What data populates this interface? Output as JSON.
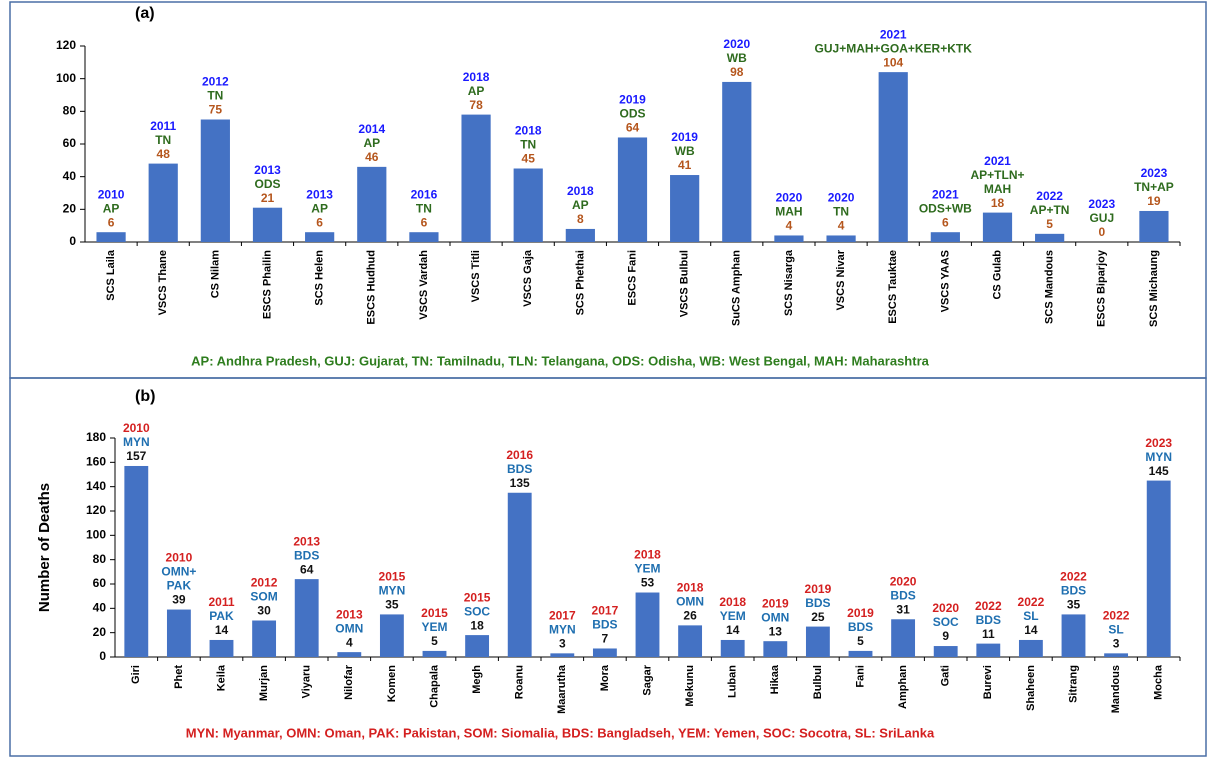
{
  "chart_data": [
    {
      "type": "bar",
      "panel_label": "(a)",
      "categories": [
        "SCS Laila",
        "VSCS Thane",
        "CS Nilam",
        "ESCS Phailin",
        "SCS Helen",
        "ESCS Hudhud",
        "VSCS Vardah",
        "VSCS Titli",
        "VSCS Gaja",
        "SCS Phethai",
        "ESCS Fani",
        "VSCS Bulbul",
        "SuCS Amphan",
        "SCS Nisarga",
        "VSCS Nivar",
        "ESCS Tauktae",
        "VSCS YAAS",
        "CS Gulab",
        "SCS Mandous",
        "ESCS Biparjoy",
        "SCS Michaung"
      ],
      "values": [
        6,
        48,
        75,
        21,
        6,
        46,
        6,
        78,
        45,
        8,
        64,
        41,
        98,
        4,
        4,
        104,
        6,
        18,
        5,
        0,
        19
      ],
      "years": [
        "2010",
        "2011",
        "2012",
        "2013",
        "2013",
        "2014",
        "2016",
        "2018",
        "2018",
        "2018",
        "2019",
        "2019",
        "2020",
        "2020",
        "2020",
        "2021",
        "2021",
        "2021",
        "2022",
        "2023",
        "2023"
      ],
      "regions": [
        [
          "AP"
        ],
        [
          "TN"
        ],
        [
          "TN"
        ],
        [
          "ODS"
        ],
        [
          "AP"
        ],
        [
          "AP"
        ],
        [
          "TN"
        ],
        [
          "AP"
        ],
        [
          "TN"
        ],
        [
          "AP"
        ],
        [
          "ODS"
        ],
        [
          "WB"
        ],
        [
          "WB"
        ],
        [
          "MAH"
        ],
        [
          "TN"
        ],
        [
          "GUJ+MAH+GOA+KER+KTK"
        ],
        [
          "ODS+WB"
        ],
        [
          "AP+TLN+",
          "MAH"
        ],
        [
          "AP+TN"
        ],
        [
          "GUJ"
        ],
        [
          "TN+AP"
        ]
      ],
      "color": "#4472c4",
      "year_color": "#1a1aff",
      "region_color": "#2e6b1e",
      "value_color": "#b5561d",
      "ylim": [
        0,
        120
      ],
      "yticks": [
        0,
        20,
        40,
        60,
        80,
        100,
        120
      ],
      "note": "AP: Andhra Pradesh, GUJ: Gujarat, TN: Tamilnadu, TLN: Telangana, ODS: Odisha, WB: West Bengal, MAH: Maharashtra",
      "note_color": "#2e7d1e"
    },
    {
      "type": "bar",
      "panel_label": "(b)",
      "y_label": "Number of Deaths",
      "categories": [
        "Giri",
        "Phet",
        "Keila",
        "Murjan",
        "Viyaru",
        "Nilofar",
        "Komen",
        "Chapala",
        "Megh",
        "Roanu",
        "Maarutha",
        "Mora",
        "Sagar",
        "Mekunu",
        "Luban",
        "Hikaa",
        "Bulbul",
        "Fani",
        "Amphan",
        "Gati",
        "Burevi",
        "Shaheen",
        "Sitrang",
        "Mandous",
        "Mocha"
      ],
      "values": [
        157,
        39,
        14,
        30,
        64,
        4,
        35,
        5,
        18,
        135,
        3,
        7,
        53,
        26,
        14,
        13,
        25,
        5,
        31,
        9,
        11,
        14,
        35,
        3,
        145
      ],
      "years": [
        "2010",
        "2010",
        "2011",
        "2012",
        "2013",
        "2013",
        "2015",
        "2015",
        "2015",
        "2016",
        "2017",
        "2017",
        "2018",
        "2018",
        "2018",
        "2019",
        "2019",
        "2019",
        "2020",
        "2020",
        "2022",
        "2022",
        "2022",
        "2022",
        "2023"
      ],
      "regions": [
        [
          "MYN"
        ],
        [
          "OMN+",
          "PAK"
        ],
        [
          "PAK"
        ],
        [
          "SOM"
        ],
        [
          "BDS"
        ],
        [
          "OMN"
        ],
        [
          "MYN"
        ],
        [
          "YEM"
        ],
        [
          "SOC"
        ],
        [
          "BDS"
        ],
        [
          "MYN"
        ],
        [
          "BDS"
        ],
        [
          "YEM"
        ],
        [
          "OMN"
        ],
        [
          "YEM"
        ],
        [
          "OMN"
        ],
        [
          "BDS"
        ],
        [
          "BDS"
        ],
        [
          "BDS"
        ],
        [
          "SOC"
        ],
        [
          "BDS"
        ],
        [
          "SL"
        ],
        [
          "BDS"
        ],
        [
          "SL"
        ],
        [
          "MYN"
        ]
      ],
      "color": "#4472c4",
      "year_color": "#d42020",
      "region_color": "#1f6fb0",
      "value_color": "#111111",
      "ylim": [
        0,
        180
      ],
      "yticks": [
        0,
        20,
        40,
        60,
        80,
        100,
        120,
        140,
        160,
        180
      ],
      "note": "MYN: Myanmar, OMN: Oman, PAK: Pakistan, SOM: Siomalia, BDS: Bangladseh, YEM: Yemen, SOC: Socotra, SL: SriLanka",
      "note_color": "#d42020"
    }
  ]
}
